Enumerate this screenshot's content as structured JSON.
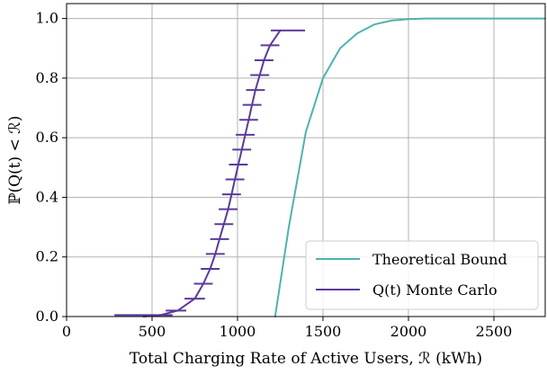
{
  "chart_data": {
    "type": "line",
    "title": "",
    "xlabel": "Total Charging Rate of Active Users, ℛ (kWh)",
    "ylabel": "ℙ(Q(t) < ℛ)",
    "xlim": [
      0,
      2800
    ],
    "ylim": [
      0,
      1.05
    ],
    "x_ticks": [
      0,
      500,
      1000,
      1500,
      2000,
      2500
    ],
    "y_ticks": [
      0.0,
      0.2,
      0.4,
      0.6,
      0.8,
      1.0
    ],
    "x_tick_labels": [
      "0",
      "500",
      "1000",
      "1500",
      "2000",
      "2500"
    ],
    "y_tick_labels": [
      "0.0",
      "0.2",
      "0.4",
      "0.6",
      "0.8",
      "1.0"
    ],
    "grid": true,
    "legend_position": "bottom-right",
    "series": [
      {
        "name": "Theoretical Bound",
        "color": "#4db3ad",
        "style": "line",
        "points": [
          [
            1220,
            0.0
          ],
          [
            1300,
            0.3
          ],
          [
            1400,
            0.62
          ],
          [
            1500,
            0.8
          ],
          [
            1600,
            0.9
          ],
          [
            1700,
            0.95
          ],
          [
            1800,
            0.98
          ],
          [
            1900,
            0.993
          ],
          [
            2000,
            0.998
          ],
          [
            2100,
            1.0
          ],
          [
            2800,
            1.0
          ]
        ]
      },
      {
        "name": "Q(t) Monte Carlo",
        "color": "#5b3a9b",
        "style": "line-with-hbars",
        "points": [
          [
            450,
            0.0
          ],
          [
            550,
            0.005
          ],
          [
            650,
            0.02
          ],
          [
            750,
            0.06
          ],
          [
            800,
            0.11
          ],
          [
            840,
            0.16
          ],
          [
            870,
            0.21
          ],
          [
            895,
            0.26
          ],
          [
            920,
            0.31
          ],
          [
            945,
            0.36
          ],
          [
            965,
            0.41
          ],
          [
            985,
            0.46
          ],
          [
            1005,
            0.51
          ],
          [
            1025,
            0.56
          ],
          [
            1045,
            0.61
          ],
          [
            1065,
            0.66
          ],
          [
            1085,
            0.71
          ],
          [
            1105,
            0.76
          ],
          [
            1130,
            0.81
          ],
          [
            1155,
            0.86
          ],
          [
            1190,
            0.91
          ],
          [
            1250,
            0.96
          ]
        ],
        "hbars": [
          [
            280,
            620,
            0.005
          ],
          [
            580,
            700,
            0.02
          ],
          [
            690,
            810,
            0.06
          ],
          [
            745,
            855,
            0.11
          ],
          [
            785,
            895,
            0.16
          ],
          [
            815,
            925,
            0.21
          ],
          [
            840,
            950,
            0.26
          ],
          [
            865,
            975,
            0.31
          ],
          [
            890,
            1000,
            0.36
          ],
          [
            910,
            1020,
            0.41
          ],
          [
            930,
            1040,
            0.46
          ],
          [
            950,
            1060,
            0.51
          ],
          [
            970,
            1080,
            0.56
          ],
          [
            990,
            1100,
            0.61
          ],
          [
            1010,
            1120,
            0.66
          ],
          [
            1030,
            1140,
            0.71
          ],
          [
            1050,
            1160,
            0.76
          ],
          [
            1075,
            1185,
            0.81
          ],
          [
            1100,
            1210,
            0.86
          ],
          [
            1135,
            1245,
            0.91
          ],
          [
            1195,
            1395,
            0.96
          ]
        ]
      }
    ]
  }
}
